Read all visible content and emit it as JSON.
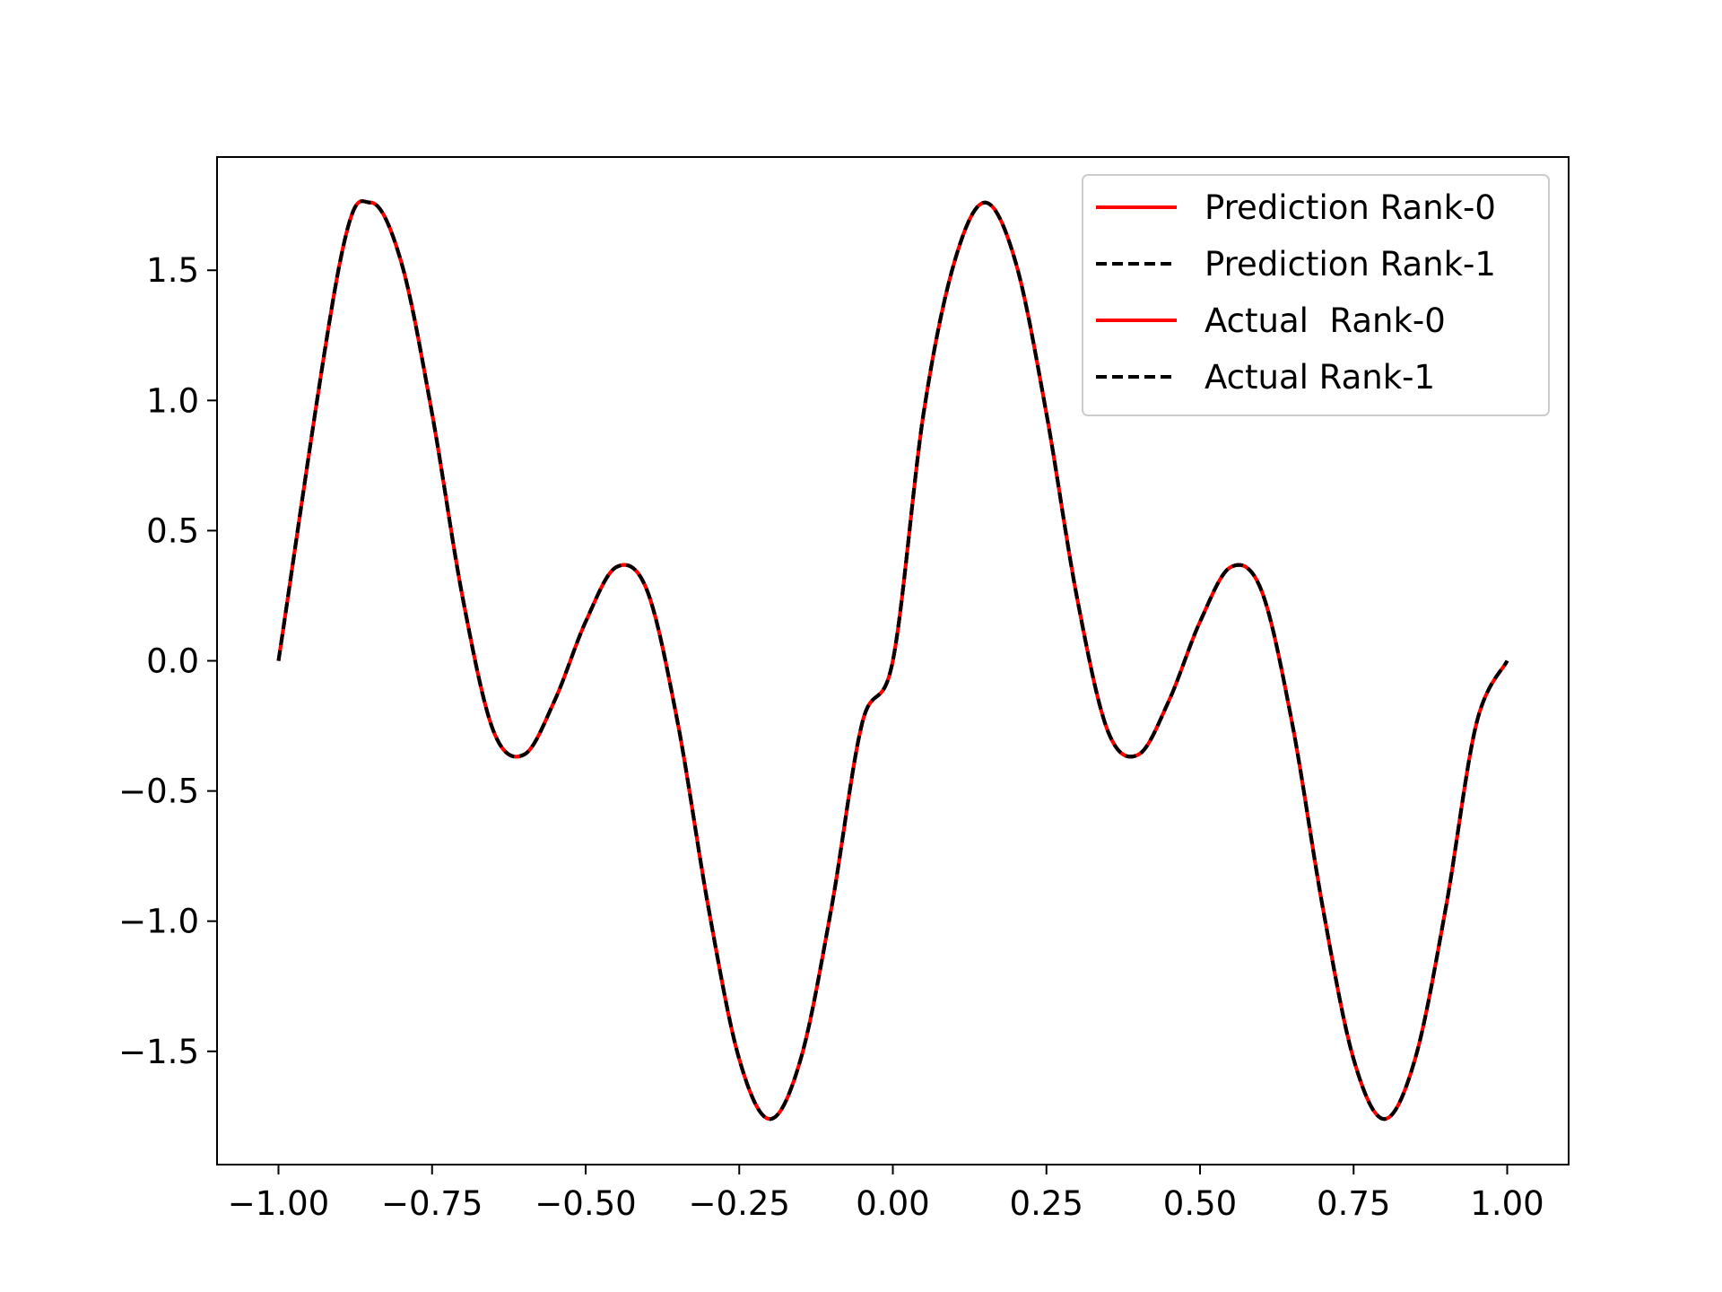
{
  "chart_data": {
    "type": "line",
    "title": "",
    "xlabel": "",
    "ylabel": "",
    "xlim": [
      -1.1,
      1.1
    ],
    "ylim": [
      -1.935,
      1.935
    ],
    "x_ticks": [
      -1.0,
      -0.75,
      -0.5,
      -0.25,
      0.0,
      0.25,
      0.5,
      0.75,
      1.0
    ],
    "x_tick_labels": [
      "−1.00",
      "−0.75",
      "−0.50",
      "−0.25",
      "0.00",
      "0.25",
      "0.50",
      "0.75",
      "1.00"
    ],
    "y_ticks": [
      -1.5,
      -1.0,
      -0.5,
      0.0,
      0.5,
      1.0,
      1.5
    ],
    "y_tick_labels": [
      "−1.5",
      "−1.0",
      "−0.5",
      "0.0",
      "0.5",
      "1.0",
      "1.5"
    ],
    "grid": false,
    "legend_position": "top-right",
    "x": [
      -1.0,
      -0.9,
      -0.85,
      -0.8,
      -0.75,
      -0.7,
      -0.65,
      -0.6,
      -0.55,
      -0.5,
      -0.45,
      -0.4,
      -0.35,
      -0.3,
      -0.25,
      -0.2,
      -0.15,
      -0.1,
      -0.05,
      0.0,
      0.05,
      0.1,
      0.15,
      0.2,
      0.25,
      0.3,
      0.35,
      0.4,
      0.45,
      0.5,
      0.55,
      0.6,
      0.65,
      0.7,
      0.75,
      0.8,
      0.85,
      0.9,
      0.95,
      1.0
    ],
    "series": [
      {
        "name": "Prediction Rank-0",
        "color": "#ff0000",
        "style": "solid",
        "values": [
          0.0,
          1.53,
          1.76,
          1.53,
          0.95,
          0.24,
          -0.27,
          -0.36,
          -0.15,
          0.15,
          0.36,
          0.27,
          -0.24,
          -0.95,
          -1.53,
          -1.76,
          -1.53,
          -0.95,
          -0.24,
          0.0,
          0.95,
          1.53,
          1.76,
          1.53,
          0.95,
          0.24,
          -0.27,
          -0.36,
          -0.15,
          0.15,
          0.36,
          0.27,
          -0.24,
          -0.95,
          -1.53,
          -1.76,
          -1.53,
          -0.95,
          -0.24,
          0.0
        ]
      },
      {
        "name": "Prediction Rank-1",
        "color": "#000000",
        "style": "dashed",
        "values": [
          0.0,
          1.53,
          1.76,
          1.53,
          0.95,
          0.24,
          -0.27,
          -0.36,
          -0.15,
          0.15,
          0.36,
          0.27,
          -0.24,
          -0.95,
          -1.53,
          -1.76,
          -1.53,
          -0.95,
          -0.24,
          0.0,
          0.95,
          1.53,
          1.76,
          1.53,
          0.95,
          0.24,
          -0.27,
          -0.36,
          -0.15,
          0.15,
          0.36,
          0.27,
          -0.24,
          -0.95,
          -1.53,
          -1.76,
          -1.53,
          -0.95,
          -0.24,
          0.0
        ]
      },
      {
        "name": "Actual  Rank-0",
        "color": "#ff0000",
        "style": "solid",
        "values": [
          0.0,
          1.53,
          1.76,
          1.53,
          0.95,
          0.24,
          -0.27,
          -0.36,
          -0.15,
          0.15,
          0.36,
          0.27,
          -0.24,
          -0.95,
          -1.53,
          -1.76,
          -1.53,
          -0.95,
          -0.24,
          0.0,
          0.95,
          1.53,
          1.76,
          1.53,
          0.95,
          0.24,
          -0.27,
          -0.36,
          -0.15,
          0.15,
          0.36,
          0.27,
          -0.24,
          -0.95,
          -1.53,
          -1.76,
          -1.53,
          -0.95,
          -0.24,
          0.0
        ]
      },
      {
        "name": "Actual Rank-1",
        "color": "#000000",
        "style": "dashed",
        "values": [
          0.0,
          1.53,
          1.76,
          1.53,
          0.95,
          0.24,
          -0.27,
          -0.36,
          -0.15,
          0.15,
          0.36,
          0.27,
          -0.24,
          -0.95,
          -1.53,
          -1.76,
          -1.53,
          -0.95,
          -0.24,
          0.0,
          0.95,
          1.53,
          1.76,
          1.53,
          0.95,
          0.24,
          -0.27,
          -0.36,
          -0.15,
          0.15,
          0.36,
          0.27,
          -0.24,
          -0.95,
          -1.53,
          -1.76,
          -1.53,
          -0.95,
          -0.24,
          0.0
        ]
      }
    ]
  }
}
